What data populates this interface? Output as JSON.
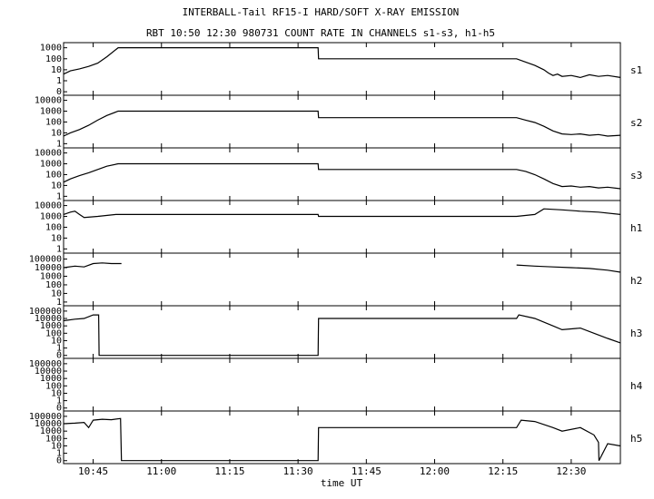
{
  "chart_data": {
    "type": "line",
    "title": "INTERBALL-Tail RF15-I HARD/SOFT X-RAY EMISSION",
    "subtitle": "RBT 10:50 12:30 980731  COUNT RATE IN CHANNELS s1-s3, h1-h5",
    "xlabel": "time UT",
    "xlim": [
      638.5,
      760.8
    ],
    "xticks": [
      {
        "value": 645,
        "label": "10:45"
      },
      {
        "value": 660,
        "label": "11:00"
      },
      {
        "value": 675,
        "label": "11:15"
      },
      {
        "value": 690,
        "label": "11:30"
      },
      {
        "value": 705,
        "label": "11:45"
      },
      {
        "value": 720,
        "label": "12:00"
      },
      {
        "value": 735,
        "label": "12:15"
      },
      {
        "value": 750,
        "label": "12:30"
      }
    ],
    "log": true,
    "color": "#000000",
    "panels": [
      {
        "label": "s1",
        "ylim": [
          0.07,
          2000
        ],
        "yticks": [
          {
            "value": 0.1,
            "label": "0"
          },
          1,
          10,
          100,
          1000
        ],
        "x": [
          638.5,
          640,
          642,
          644,
          646,
          648,
          650.5,
          694.4,
          694.5,
          738,
          740,
          742,
          744,
          745,
          746,
          747,
          748,
          750,
          752,
          754,
          756,
          758,
          760.8
        ],
        "values": [
          4,
          8,
          12,
          20,
          40,
          150,
          1000,
          1000,
          100,
          100,
          50,
          25,
          10,
          5,
          3,
          4,
          2.5,
          3,
          2,
          3.5,
          2.5,
          3,
          2
        ]
      },
      {
        "label": "s2",
        "ylim": [
          0.6,
          20000
        ],
        "yticks": [
          1,
          10,
          100,
          1000,
          10000
        ],
        "x": [
          638.5,
          640,
          642,
          644,
          646,
          648,
          650.5,
          694.4,
          694.5,
          738,
          740,
          742,
          744,
          746,
          748,
          750,
          752,
          754,
          756,
          758,
          760.8
        ],
        "values": [
          5,
          10,
          20,
          50,
          150,
          400,
          1000,
          1000,
          250,
          250,
          150,
          90,
          40,
          15,
          8,
          7,
          8,
          6,
          7,
          5,
          6
        ]
      },
      {
        "label": "s3",
        "ylim": [
          0.6,
          20000
        ],
        "yticks": [
          1,
          10,
          100,
          1000,
          10000
        ],
        "x": [
          638.5,
          640,
          642,
          644,
          646,
          648,
          650.5,
          694.4,
          694.5,
          738,
          740,
          742,
          744,
          746,
          748,
          750,
          752,
          754,
          756,
          758,
          760.8
        ],
        "values": [
          20,
          40,
          80,
          150,
          300,
          600,
          1000,
          1000,
          300,
          300,
          200,
          100,
          40,
          15,
          8,
          9,
          7,
          8,
          6,
          7,
          5
        ]
      },
      {
        "label": "h1",
        "ylim": [
          0.6,
          20000
        ],
        "yticks": [
          1,
          10,
          100,
          1000,
          10000
        ],
        "x": [
          638.5,
          640,
          641,
          642,
          643,
          646,
          650,
          694.4,
          694.5,
          738,
          742,
          744,
          748,
          752,
          756,
          760.8
        ],
        "values": [
          1500,
          2500,
          3000,
          1500,
          800,
          1000,
          1500,
          1500,
          1000,
          1000,
          1500,
          5000,
          4000,
          3000,
          2500,
          1500
        ]
      },
      {
        "label": "h2",
        "ylim": [
          0.6,
          300000
        ],
        "yticks": [
          1,
          10,
          100,
          1000,
          10000,
          100000
        ],
        "x": [
          638.5,
          641,
          643,
          645,
          647,
          649,
          651.2,
          652,
          738,
          742,
          746,
          750,
          754,
          758,
          760.8
        ],
        "values": [
          10000,
          15000,
          12000,
          30000,
          35000,
          30000,
          30000,
          null,
          20000,
          15000,
          12000,
          10000,
          8000,
          5000,
          3000
        ]
      },
      {
        "label": "h3",
        "ylim": [
          0.07,
          300000
        ],
        "yticks": [
          {
            "value": 0.1,
            "label": "0"
          },
          1,
          10,
          100,
          1000,
          10000,
          100000
        ],
        "x": [
          638.5,
          641,
          643,
          645,
          646.2,
          646.3,
          694.4,
          694.5,
          738,
          738.5,
          742,
          746,
          748,
          752,
          755,
          758,
          760.8
        ],
        "values": [
          5000,
          8000,
          10000,
          30000,
          30000,
          0.1,
          0.1,
          10000,
          10000,
          30000,
          10000,
          1000,
          300,
          500,
          100,
          20,
          5
        ]
      },
      {
        "label": "h4",
        "ylim": [
          0.07,
          300000
        ],
        "yticks": [
          {
            "value": 0.1,
            "label": "0"
          },
          1,
          10,
          100,
          1000,
          10000,
          100000
        ],
        "x": [],
        "values": []
      },
      {
        "label": "h5",
        "ylim": [
          0.07,
          300000
        ],
        "yticks": [
          {
            "value": 0.1,
            "label": "0"
          },
          1,
          10,
          100,
          1000,
          10000,
          100000
        ],
        "x": [
          638.5,
          641,
          643,
          644,
          645,
          647,
          649,
          651,
          651.2,
          694.4,
          694.5,
          738,
          739,
          742,
          746,
          748,
          752,
          755,
          756,
          756.1,
          758,
          760.8
        ],
        "values": [
          10000,
          12000,
          15000,
          3000,
          30000,
          40000,
          35000,
          50000,
          0.1,
          0.1,
          3000,
          3000,
          30000,
          20000,
          3000,
          1000,
          3000,
          300,
          30,
          0.1,
          20,
          10
        ]
      }
    ]
  }
}
